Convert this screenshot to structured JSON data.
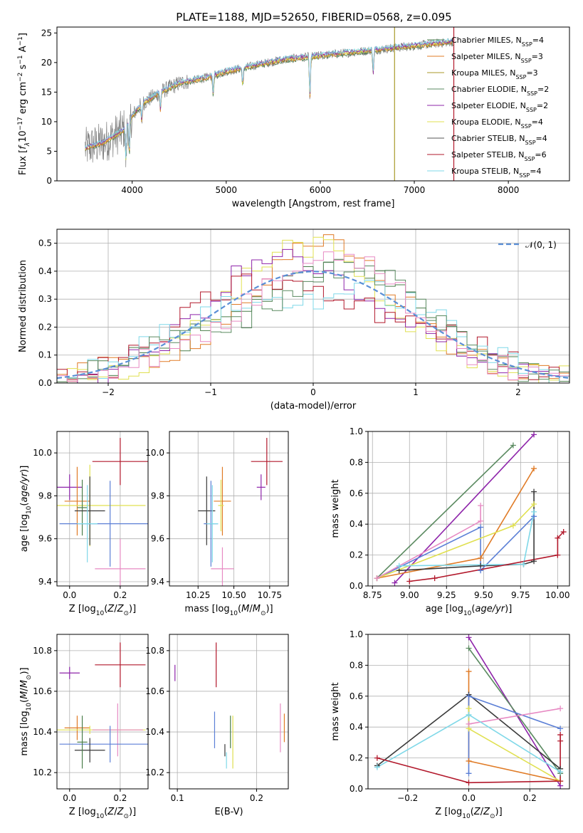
{
  "figure": {
    "title": "PLATE=1188, MJD=52650, FIBERID=0568, z=0.095"
  },
  "colors": {
    "Chabrier MILES": "#4a7d4a",
    "Salpeter MILES": "#e07b26",
    "Kroupa MILES": "#a89a2a",
    "Chabrier ELODIE": "#5a8a60",
    "Salpeter ELODIE": "#8e24aa",
    "Kroupa ELODIE": "#e0e050",
    "Chabrier STELIB": "#555555",
    "Salpeter STELIB": "#b2182b",
    "Kroupa STELIB": "#7fd8e8",
    "blue": "#5b7fd6",
    "pink": "#e78ac3",
    "green": "#3a6b3a",
    "dark": "#3a3a3a",
    "normal_curve": "#5a8fd6"
  },
  "chart_data": [
    {
      "id": "spectrum",
      "type": "line",
      "xlabel": "wavelength [Angstrom, rest frame]",
      "ylabel": "Flux [f_λ10^-17 erg cm^-2 s^-1 A^-1]",
      "xlim": [
        3200,
        8650
      ],
      "ylim": [
        0,
        26
      ],
      "xticks": [
        4000,
        5000,
        6000,
        7000,
        8000
      ],
      "yticks": [
        0,
        5,
        10,
        15,
        20,
        25
      ],
      "grid": false,
      "legend_position": "right",
      "legend": [
        {
          "base": "Chabrier MILES",
          "nssp": "4"
        },
        {
          "base": "Salpeter MILES",
          "nssp": "3"
        },
        {
          "base": "Kroupa MILES",
          "nssp": "3"
        },
        {
          "base": "Chabrier ELODIE",
          "nssp": "2"
        },
        {
          "base": "Salpeter ELODIE",
          "nssp": "2"
        },
        {
          "base": "Kroupa ELODIE",
          "nssp": "4"
        },
        {
          "base": "Chabrier STELIB",
          "nssp": "4"
        },
        {
          "base": "Salpeter STELIB",
          "nssp": "6"
        },
        {
          "base": "Kroupa STELIB",
          "nssp": "4"
        }
      ],
      "data_range": [
        3500,
        7420
      ],
      "continuum": {
        "x": [
          3500,
          3700,
          3900,
          4000,
          4100,
          4300,
          4500,
          4800,
          5000,
          5300,
          5600,
          5900,
          6200,
          6500,
          6800,
          7100,
          7400
        ],
        "y": [
          5.5,
          6.5,
          8.5,
          11,
          13,
          15,
          16.5,
          17.5,
          18.5,
          19.5,
          20.5,
          21.0,
          21.5,
          22.0,
          22.5,
          23.0,
          23.5
        ]
      },
      "observed_color": "#808080",
      "model_series": [
        "Chabrier MILES",
        "Salpeter MILES",
        "Kroupa ELODIE",
        "Salpeter ELODIE",
        "Kroupa STELIB"
      ],
      "vertical_lines": [
        {
          "series": "Kroupa MILES",
          "x": 6790
        },
        {
          "series": "Salpeter STELIB",
          "x": 7420
        }
      ]
    },
    {
      "id": "residuals",
      "type": "line",
      "xlabel": "(data-model)/error",
      "ylabel": "Normed distribution",
      "xlim": [
        -2.5,
        2.5
      ],
      "ylim": [
        0,
        0.55
      ],
      "xticks": [
        -2,
        -1,
        0,
        1,
        2
      ],
      "yticks": [
        0.0,
        0.1,
        0.2,
        0.3,
        0.4,
        0.5
      ],
      "grid": true,
      "legend_position": "upper right",
      "normal_label": "𝒩(0, 1)",
      "hist_series": [
        "Chabrier MILES",
        "Salpeter MILES",
        "Kroupa ELODIE",
        "Salpeter ELODIE",
        "Salpeter STELIB",
        "Kroupa STELIB",
        "Chabrier ELODIE",
        "pink"
      ]
    },
    {
      "id": "age_vs_Z",
      "type": "scatter",
      "xlabel": "Z [log10(Z/Z⊙)]",
      "ylabel": "age  [log10(age/yr)]",
      "xlim": [
        -0.05,
        0.31
      ],
      "ylim": [
        9.38,
        10.1
      ],
      "xticks": [
        0.0,
        0.2
      ],
      "yticks": [
        9.4,
        9.6,
        9.8,
        10.0
      ],
      "grid": true,
      "points": [
        {
          "series": "Salpeter STELIB",
          "x": 0.2,
          "y": 9.96,
          "xerr": 0.11,
          "yerr": 0.11
        },
        {
          "series": "Salpeter ELODIE",
          "x": 0.0,
          "y": 9.84,
          "xerr": 0.05,
          "yerr": 0.06
        },
        {
          "series": "Salpeter MILES",
          "x": 0.03,
          "y": 9.775,
          "xerr": 0.05,
          "yerr": 0.16
        },
        {
          "series": "Kroupa ELODIE",
          "x": 0.08,
          "y": 9.755,
          "xerr": 0.22,
          "yerr": 0.19
        },
        {
          "series": "Chabrier MILES",
          "x": 0.05,
          "y": 9.745,
          "xerr": 0.02,
          "yerr": 0.13
        },
        {
          "series": "dark",
          "x": 0.08,
          "y": 9.73,
          "xerr": 0.06,
          "yerr": 0.16
        },
        {
          "series": "blue",
          "x": 0.16,
          "y": 9.67,
          "xerr": 0.2,
          "yerr": 0.2
        },
        {
          "series": "Kroupa STELIB",
          "x": 0.07,
          "y": 9.67,
          "xerr": 0.04,
          "yerr": 0.18
        },
        {
          "series": "pink",
          "x": 0.2,
          "y": 9.46,
          "xerr": 0.1,
          "yerr": 0.14
        }
      ]
    },
    {
      "id": "age_vs_mass",
      "type": "scatter",
      "xlabel": "mass [log10(M/M⊙)]",
      "xlim": [
        10.05,
        10.88
      ],
      "ylim": [
        9.38,
        10.1
      ],
      "xticks": [
        10.25,
        10.5,
        10.75
      ],
      "yticks": [
        9.4,
        9.6,
        9.8,
        10.0
      ],
      "grid": true,
      "points": [
        {
          "series": "Salpeter STELIB",
          "x": 10.73,
          "y": 9.96,
          "xerr": 0.11,
          "yerr": 0.11
        },
        {
          "series": "Salpeter ELODIE",
          "x": 10.69,
          "y": 9.84,
          "xerr": 0.03,
          "yerr": 0.06
        },
        {
          "series": "Salpeter MILES",
          "x": 10.42,
          "y": 9.775,
          "xerr": 0.06,
          "yerr": 0.16
        },
        {
          "series": "Kroupa ELODIE",
          "x": 10.41,
          "y": 9.755,
          "xerr": 0.02,
          "yerr": 0.12
        },
        {
          "series": "dark",
          "x": 10.31,
          "y": 9.73,
          "xerr": 0.06,
          "yerr": 0.16
        },
        {
          "series": "blue",
          "x": 10.34,
          "y": 9.67,
          "xerr": 0.05,
          "yerr": 0.2
        },
        {
          "series": "Kroupa STELIB",
          "x": 10.35,
          "y": 9.67,
          "xerr": 0.04,
          "yerr": 0.18
        },
        {
          "series": "pink",
          "x": 10.42,
          "y": 9.46,
          "xerr": 0.08,
          "yerr": 0.1
        }
      ]
    },
    {
      "id": "mass_weight_vs_age",
      "type": "line",
      "xlabel": "age  [log10(age/yr)]",
      "ylabel": "mass weight",
      "xlim": [
        8.72,
        10.08
      ],
      "ylim": [
        0,
        1.0
      ],
      "xticks": [
        8.75,
        9.0,
        9.25,
        9.5,
        9.75,
        10.0
      ],
      "yticks": [
        0.0,
        0.2,
        0.4,
        0.6,
        0.8,
        1.0
      ],
      "grid": true,
      "series": [
        {
          "name": "Salpeter ELODIE",
          "x": [
            8.9,
            9.84
          ],
          "y": [
            0.02,
            0.98
          ]
        },
        {
          "name": "Chabrier ELODIE",
          "x": [
            8.78,
            9.7
          ],
          "y": [
            0.05,
            0.91
          ]
        },
        {
          "name": "Salpeter MILES",
          "x": [
            8.78,
            9.48,
            9.84
          ],
          "y": [
            0.05,
            0.18,
            0.76
          ]
        },
        {
          "name": "dark",
          "x": [
            8.93,
            9.48,
            9.77,
            9.84,
            9.84
          ],
          "y": [
            0.1,
            0.13,
            0.14,
            0.16,
            0.61
          ]
        },
        {
          "name": "blue",
          "x": [
            8.78,
            9.48,
            9.48,
            9.84,
            9.84
          ],
          "y": [
            0.05,
            0.38,
            0.1,
            0.45,
            0.45
          ]
        },
        {
          "name": "Kroupa ELODIE",
          "x": [
            8.78,
            9.7,
            9.84
          ],
          "y": [
            0.05,
            0.39,
            0.53
          ]
        },
        {
          "name": "pink",
          "x": [
            8.78,
            9.48,
            9.48
          ],
          "y": [
            0.05,
            0.42,
            0.52
          ]
        },
        {
          "name": "Kroupa STELIB",
          "x": [
            8.93,
            9.77,
            9.84
          ],
          "y": [
            0.13,
            0.14,
            0.48
          ]
        },
        {
          "name": "Salpeter STELIB",
          "x": [
            9.0,
            9.17,
            10.0,
            10.0,
            10.04
          ],
          "y": [
            0.03,
            0.05,
            0.2,
            0.31,
            0.35
          ]
        }
      ]
    },
    {
      "id": "mass_vs_Z",
      "type": "scatter",
      "xlabel": "Z [log10(Z/Z⊙)]",
      "ylabel": "mass [log10(M/M⊙)]",
      "xlim": [
        -0.05,
        0.31
      ],
      "ylim": [
        10.12,
        10.88
      ],
      "xticks": [
        0.0,
        0.2
      ],
      "yticks": [
        10.2,
        10.4,
        10.6,
        10.8
      ],
      "grid": true,
      "points": [
        {
          "series": "Salpeter STELIB",
          "x": 0.2,
          "y": 10.73,
          "xerr": 0.1,
          "yerr": 0.11
        },
        {
          "series": "Salpeter ELODIE",
          "x": 0.0,
          "y": 10.69,
          "xerr": 0.04,
          "yerr": 0.03
        },
        {
          "series": "Salpeter MILES",
          "x": 0.03,
          "y": 10.42,
          "xerr": 0.05,
          "yerr": 0.06
        },
        {
          "series": "Kroupa ELODIE",
          "x": 0.08,
          "y": 10.41,
          "xerr": 0.22,
          "yerr": 0.02
        },
        {
          "series": "pink",
          "x": 0.19,
          "y": 10.41,
          "xerr": 0.1,
          "yerr": 0.13
        },
        {
          "series": "blue",
          "x": 0.16,
          "y": 10.34,
          "xerr": 0.2,
          "yerr": 0.09
        },
        {
          "series": "dark",
          "x": 0.08,
          "y": 10.31,
          "xerr": 0.06,
          "yerr": 0.06
        },
        {
          "series": "Chabrier MILES",
          "x": 0.05,
          "y": 10.35,
          "xerr": 0.02,
          "yerr": 0.13
        }
      ]
    },
    {
      "id": "mass_vs_ebv",
      "type": "scatter",
      "xlabel": "E(B-V)",
      "xlim": [
        0.09,
        0.24
      ],
      "ylim": [
        10.12,
        10.88
      ],
      "xticks": [
        0.1,
        0.2
      ],
      "yticks": [
        10.2,
        10.4,
        10.6,
        10.8
      ],
      "grid": true,
      "points": [
        {
          "series": "Salpeter ELODIE",
          "x": 0.097,
          "y": 10.69,
          "xerr": 0.0,
          "yerr": 0.04
        },
        {
          "series": "Salpeter STELIB",
          "x": 0.149,
          "y": 10.73,
          "xerr": 0.0,
          "yerr": 0.11
        },
        {
          "series": "blue",
          "x": 0.147,
          "y": 10.41,
          "xerr": 0.0,
          "yerr": 0.09
        },
        {
          "series": "dark",
          "x": 0.16,
          "y": 10.31,
          "xerr": 0.0,
          "yerr": 0.03
        },
        {
          "series": "Kroupa ELODIE",
          "x": 0.17,
          "y": 10.35,
          "xerr": 0.0,
          "yerr": 0.13
        },
        {
          "series": "Chabrier MILES",
          "x": 0.167,
          "y": 10.4,
          "xerr": 0.0,
          "yerr": 0.08
        },
        {
          "series": "Kroupa STELIB",
          "x": 0.162,
          "y": 10.26,
          "xerr": 0.0,
          "yerr": 0.04
        },
        {
          "series": "pink",
          "x": 0.23,
          "y": 10.42,
          "xerr": 0.0,
          "yerr": 0.12
        },
        {
          "series": "Salpeter MILES",
          "x": 0.235,
          "y": 10.42,
          "xerr": 0.0,
          "yerr": 0.07
        }
      ]
    },
    {
      "id": "mass_weight_vs_Z",
      "type": "line",
      "xlabel": "Z [log10(Z/Z⊙)]",
      "ylabel": "mass weight",
      "xlim": [
        -0.33,
        0.33
      ],
      "ylim": [
        0,
        1.0
      ],
      "xticks": [
        -0.2,
        0.0,
        0.2
      ],
      "yticks": [
        0.0,
        0.2,
        0.4,
        0.6,
        0.8,
        1.0
      ],
      "grid": true,
      "series": [
        {
          "name": "Salpeter ELODIE",
          "x": [
            0.0,
            0.3
          ],
          "y": [
            0.98,
            0.02
          ]
        },
        {
          "name": "Chabrier ELODIE",
          "x": [
            0.0,
            0.3
          ],
          "y": [
            0.91,
            0.1
          ]
        },
        {
          "name": "Salpeter MILES",
          "x": [
            0.0,
            0.0,
            0.3
          ],
          "y": [
            0.76,
            0.18,
            0.05
          ]
        },
        {
          "name": "dark",
          "x": [
            -0.3,
            0.0,
            0.3
          ],
          "y": [
            0.15,
            0.61,
            0.13
          ]
        },
        {
          "name": "blue",
          "x": [
            0.0,
            0.0,
            0.3
          ],
          "y": [
            0.1,
            0.6,
            0.39
          ]
        },
        {
          "name": "Kroupa ELODIE",
          "x": [
            0.0,
            0.0,
            0.3
          ],
          "y": [
            0.52,
            0.39,
            0.05
          ]
        },
        {
          "name": "pink",
          "x": [
            0.0,
            0.3
          ],
          "y": [
            0.42,
            0.52
          ]
        },
        {
          "name": "Kroupa STELIB",
          "x": [
            -0.3,
            0.0,
            0.3
          ],
          "y": [
            0.14,
            0.48,
            0.11
          ]
        },
        {
          "name": "Salpeter STELIB",
          "x": [
            -0.3,
            0.0,
            0.3,
            0.3,
            0.3
          ],
          "y": [
            0.2,
            0.04,
            0.05,
            0.31,
            0.35
          ]
        }
      ]
    }
  ]
}
